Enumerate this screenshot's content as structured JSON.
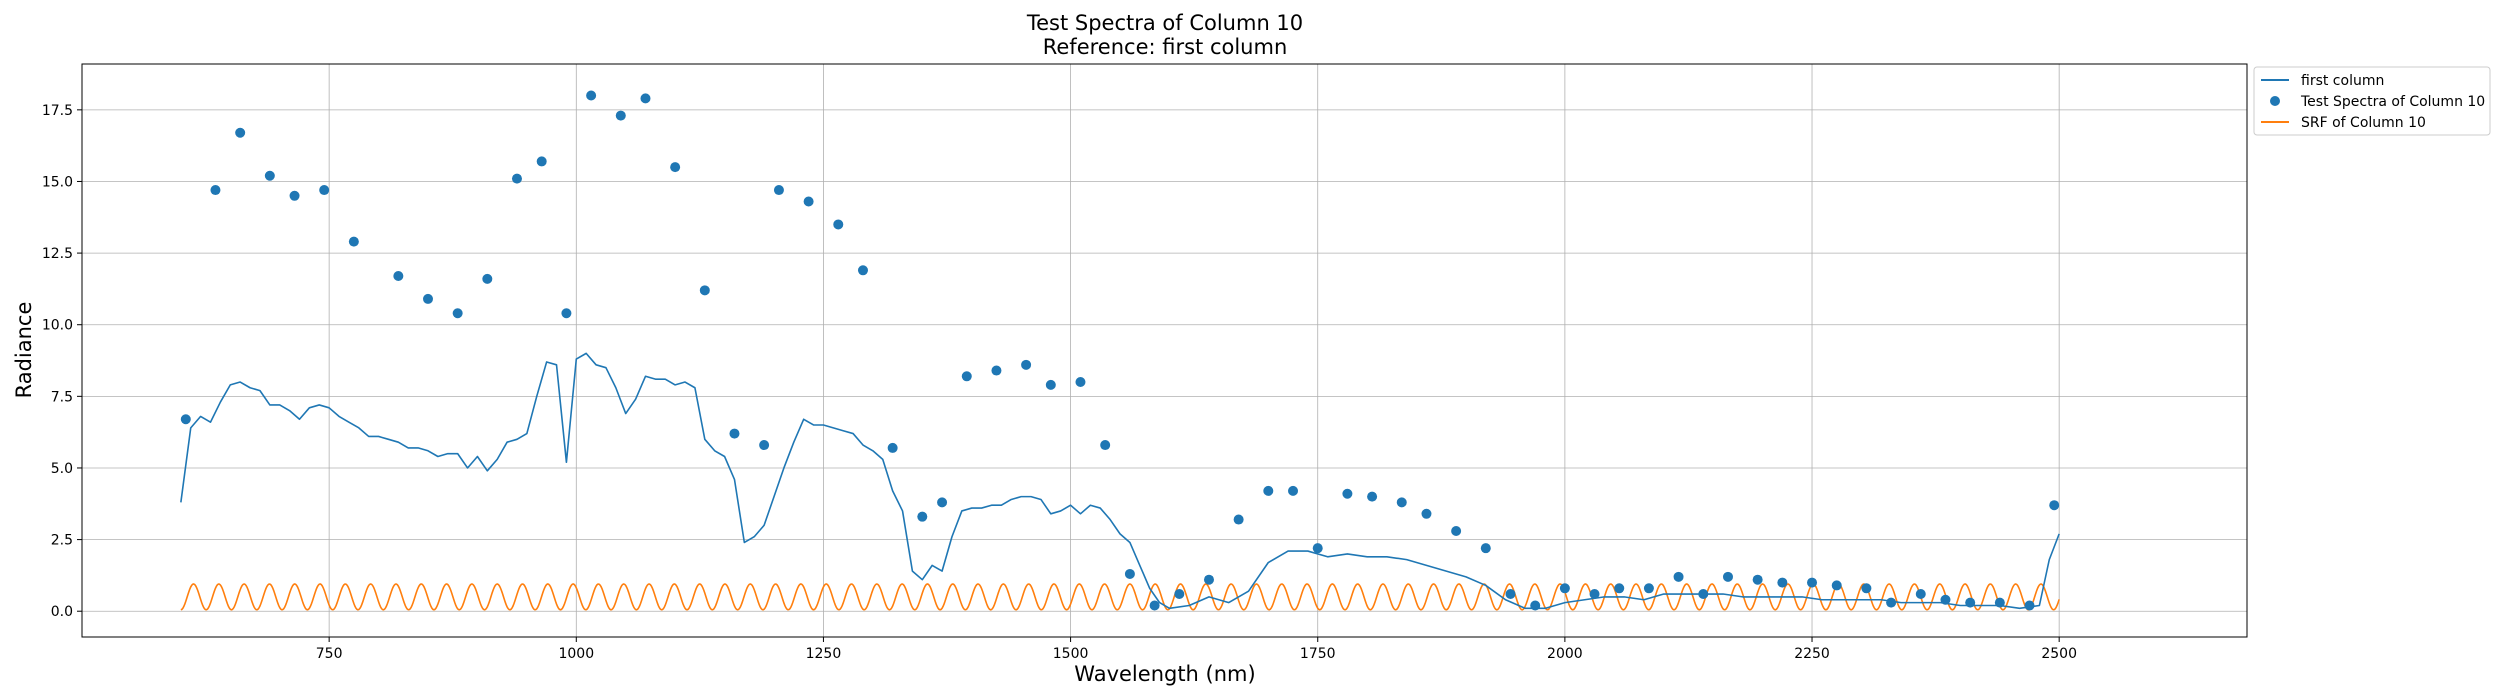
{
  "chart_data": {
    "type": "line",
    "title": "Test Spectra of Column 10",
    "subtitle": "Reference: first column",
    "xlabel": "Wavelength (nm)",
    "ylabel": "Radiance",
    "xlim": [
      500,
      2690
    ],
    "ylim": [
      -0.9,
      19.1
    ],
    "xticks": [
      750,
      1000,
      1250,
      1500,
      1750,
      2000,
      2250,
      2500
    ],
    "xtick_labels": [
      "750",
      "1000",
      "1250",
      "1500",
      "1750",
      "2000",
      "2250",
      "2500"
    ],
    "yticks": [
      0.0,
      2.5,
      5.0,
      7.5,
      10.0,
      12.5,
      15.0,
      17.5
    ],
    "ytick_labels": [
      "0.0",
      "2.5",
      "5.0",
      "7.5",
      "10.0",
      "12.5",
      "15.0",
      "17.5"
    ],
    "grid": true,
    "legend_position": "outside-top-right",
    "colors": {
      "first_column": "#1f77b4",
      "test_spectra": "#1f77b4",
      "srf": "#ff7f0e"
    },
    "series": [
      {
        "name": "first column",
        "kind": "line",
        "color": "#1f77b4",
        "x": [
          600,
          610,
          620,
          630,
          640,
          650,
          660,
          670,
          680,
          690,
          700,
          710,
          720,
          730,
          740,
          750,
          760,
          770,
          780,
          790,
          800,
          810,
          820,
          830,
          840,
          850,
          860,
          870,
          880,
          890,
          900,
          910,
          920,
          930,
          940,
          950,
          960,
          970,
          980,
          990,
          1000,
          1010,
          1020,
          1030,
          1040,
          1050,
          1060,
          1070,
          1080,
          1090,
          1100,
          1110,
          1120,
          1130,
          1140,
          1150,
          1160,
          1170,
          1180,
          1190,
          1200,
          1210,
          1220,
          1230,
          1240,
          1250,
          1260,
          1270,
          1280,
          1290,
          1300,
          1310,
          1320,
          1330,
          1340,
          1350,
          1360,
          1370,
          1380,
          1390,
          1400,
          1410,
          1420,
          1430,
          1440,
          1450,
          1460,
          1470,
          1480,
          1490,
          1500,
          1510,
          1520,
          1530,
          1540,
          1550,
          1560,
          1570,
          1580,
          1590,
          1600,
          1620,
          1640,
          1660,
          1680,
          1700,
          1720,
          1740,
          1760,
          1780,
          1800,
          1820,
          1840,
          1860,
          1880,
          1900,
          1920,
          1940,
          1960,
          1980,
          2000,
          2020,
          2040,
          2060,
          2080,
          2100,
          2120,
          2140,
          2160,
          2180,
          2200,
          2220,
          2240,
          2260,
          2280,
          2300,
          2320,
          2340,
          2360,
          2380,
          2400,
          2420,
          2440,
          2460,
          2480,
          2490,
          2500
        ],
        "y": [
          3.8,
          6.4,
          6.8,
          6.6,
          7.3,
          7.9,
          8.0,
          7.8,
          7.7,
          7.2,
          7.2,
          7.0,
          6.7,
          7.1,
          7.2,
          7.1,
          6.8,
          6.6,
          6.4,
          6.1,
          6.1,
          6.0,
          5.9,
          5.7,
          5.7,
          5.6,
          5.4,
          5.5,
          5.5,
          5.0,
          5.4,
          4.9,
          5.3,
          5.9,
          6.0,
          6.2,
          7.5,
          8.7,
          8.6,
          5.2,
          8.8,
          9.0,
          8.6,
          8.5,
          7.8,
          6.9,
          7.4,
          8.2,
          8.1,
          8.1,
          7.9,
          8.0,
          7.8,
          6.0,
          5.6,
          5.4,
          4.6,
          2.4,
          2.6,
          3.0,
          4.0,
          5.0,
          5.9,
          6.7,
          6.5,
          6.5,
          6.4,
          6.3,
          6.2,
          5.8,
          5.6,
          5.3,
          4.2,
          3.5,
          1.4,
          1.1,
          1.6,
          1.4,
          2.6,
          3.5,
          3.6,
          3.6,
          3.7,
          3.7,
          3.9,
          4.0,
          4.0,
          3.9,
          3.4,
          3.5,
          3.7,
          3.4,
          3.7,
          3.6,
          3.2,
          2.7,
          2.4,
          1.6,
          0.8,
          0.3,
          0.1,
          0.2,
          0.5,
          0.3,
          0.7,
          1.7,
          2.1,
          2.1,
          1.9,
          2.0,
          1.9,
          1.9,
          1.8,
          1.6,
          1.4,
          1.2,
          0.9,
          0.4,
          0.1,
          0.1,
          0.3,
          0.4,
          0.5,
          0.5,
          0.4,
          0.6,
          0.6,
          0.6,
          0.6,
          0.5,
          0.5,
          0.5,
          0.5,
          0.4,
          0.4,
          0.4,
          0.4,
          0.3,
          0.3,
          0.3,
          0.2,
          0.2,
          0.2,
          0.1,
          0.2,
          1.8,
          2.7
        ]
      },
      {
        "name": "Test Spectra of Column 10",
        "kind": "scatter",
        "color": "#1f77b4",
        "x": [
          605,
          635,
          660,
          690,
          715,
          745,
          775,
          820,
          850,
          880,
          910,
          940,
          965,
          990,
          1015,
          1045,
          1070,
          1100,
          1130,
          1160,
          1190,
          1205,
          1235,
          1265,
          1290,
          1320,
          1350,
          1370,
          1395,
          1425,
          1455,
          1480,
          1510,
          1535,
          1560,
          1585,
          1610,
          1640,
          1670,
          1700,
          1725,
          1750,
          1780,
          1805,
          1835,
          1860,
          1890,
          1920,
          1945,
          1970,
          2000,
          2030,
          2055,
          2085,
          2115,
          2140,
          2165,
          2195,
          2220,
          2250,
          2275,
          2305,
          2330,
          2360,
          2385,
          2410,
          2440,
          2470,
          2495
        ],
        "y": [
          6.7,
          14.7,
          16.7,
          15.2,
          14.5,
          14.7,
          12.9,
          11.7,
          10.9,
          10.4,
          11.6,
          15.1,
          15.7,
          10.4,
          18.0,
          17.3,
          17.9,
          15.5,
          11.2,
          6.2,
          5.8,
          14.7,
          14.3,
          13.5,
          11.9,
          5.7,
          3.3,
          3.8,
          8.2,
          8.4,
          8.6,
          7.9,
          8.0,
          5.8,
          1.3,
          0.2,
          0.6,
          1.1,
          3.2,
          4.2,
          4.2,
          2.2,
          4.1,
          4.0,
          3.8,
          3.4,
          2.8,
          2.2,
          0.6,
          0.2,
          0.8,
          0.6,
          0.8,
          0.8,
          1.2,
          0.6,
          1.2,
          1.1,
          1.0,
          1.0,
          0.9,
          0.8,
          0.3,
          0.6,
          0.4,
          0.3,
          0.3,
          0.2,
          3.7
        ]
      },
      {
        "name": "SRF of Column 10",
        "kind": "line",
        "color": "#ff7f0e",
        "x_start": 600,
        "x_end": 2500,
        "period": 25.6,
        "min": 0.05,
        "max": 0.95
      }
    ]
  }
}
